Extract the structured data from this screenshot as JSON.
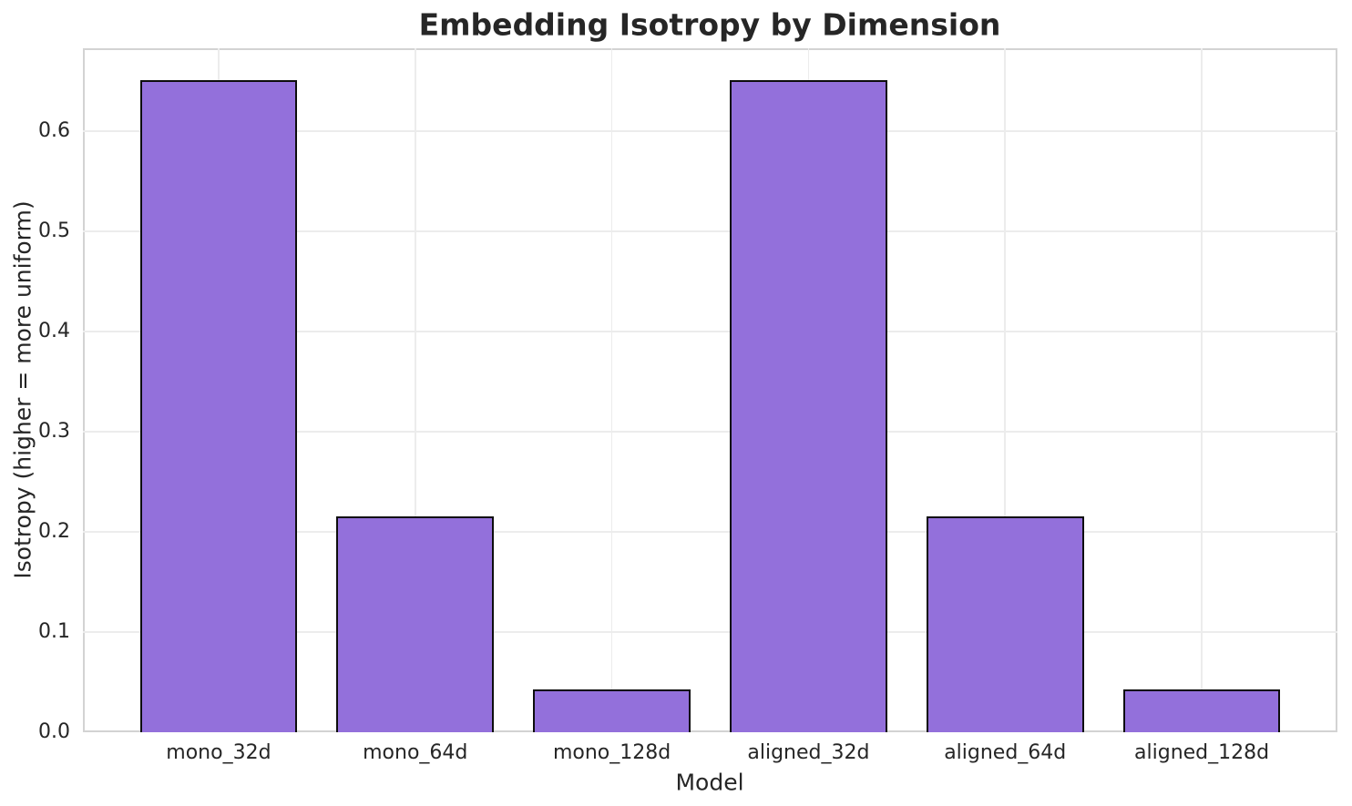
{
  "chart_data": {
    "type": "bar",
    "title": "Embedding Isotropy by Dimension",
    "xlabel": "Model",
    "ylabel": "Isotropy (higher = more uniform)",
    "categories": [
      "mono_32d",
      "mono_64d",
      "mono_128d",
      "aligned_32d",
      "aligned_64d",
      "aligned_128d"
    ],
    "values": [
      0.651,
      0.216,
      0.043,
      0.651,
      0.216,
      0.043
    ],
    "ylim": [
      0,
      0.683
    ],
    "yticks": [
      0.0,
      0.1,
      0.2,
      0.3,
      0.4,
      0.5,
      0.6
    ],
    "ytick_labels": [
      "0.0",
      "0.1",
      "0.2",
      "0.3",
      "0.4",
      "0.5",
      "0.6"
    ],
    "grid": true,
    "legend": false,
    "bar_color": "#9370DB",
    "bar_edge_color": "#0d0d0d",
    "grid_color": "#ececec",
    "spine_color": "#d3d3d3",
    "text_color": "#262626"
  }
}
